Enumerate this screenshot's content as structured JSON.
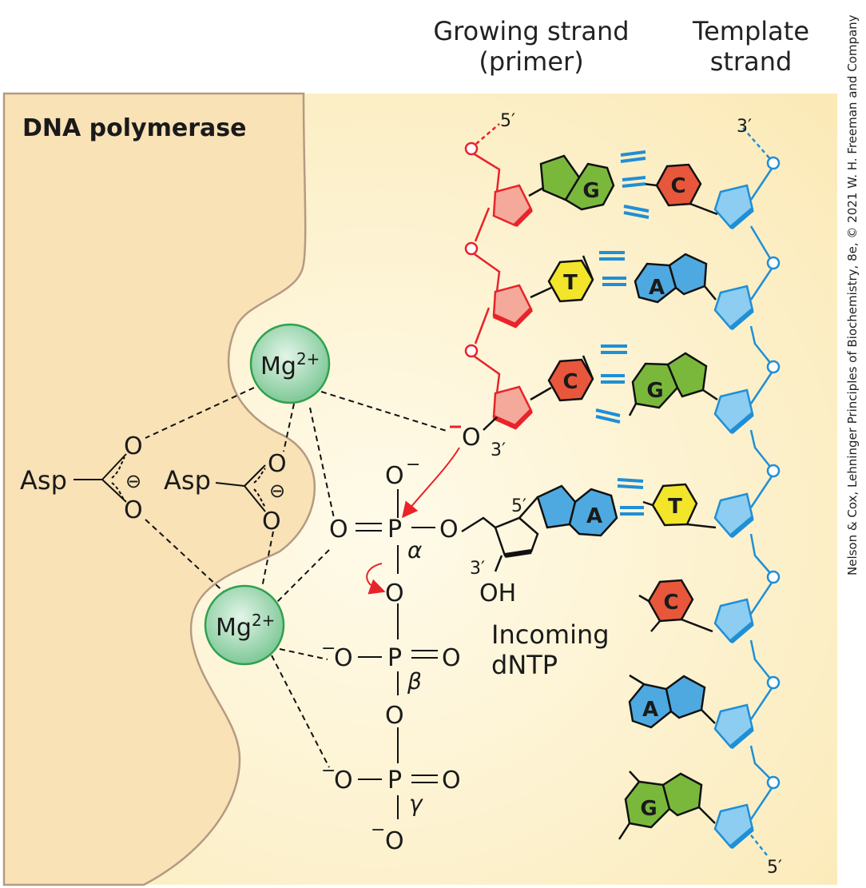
{
  "labels": {
    "growing_strand": "Growing strand",
    "growing_strand_sub": "(primer)",
    "template_strand": "Template",
    "template_strand_sub": "strand",
    "enzyme": "DNA polymerase",
    "mg": "Mg",
    "mg_charge": "2+",
    "asp": "Asp",
    "incoming": "Incoming",
    "incoming_sub": "dNTP",
    "five_prime": "5′",
    "three_prime": "3′",
    "alpha": "α",
    "beta": "β",
    "gamma": "γ",
    "oh": "OH",
    "o": "O",
    "p": "P",
    "minus": "−",
    "circled_minus": "⊖"
  },
  "bases": {
    "primer": [
      "G",
      "T",
      "C"
    ],
    "incoming": "A",
    "template": [
      "C",
      "A",
      "G",
      "T",
      "C",
      "A",
      "G"
    ]
  },
  "colors": {
    "background_yellow": "#fbefc4",
    "enzyme_tan": "#f8e2b6",
    "primer_red": "#e8232a",
    "template_blue": "#1f8fd6",
    "G": "#7ab83c",
    "C": "#e8573b",
    "T": "#f2e52a",
    "A": "#4ea9e0",
    "mg_green": "#8fd2a3"
  },
  "credit": "Nelson & Cox, Lehninger Principles of Biochemistry, 8e, © 2021 W. H. Freeman and Company"
}
